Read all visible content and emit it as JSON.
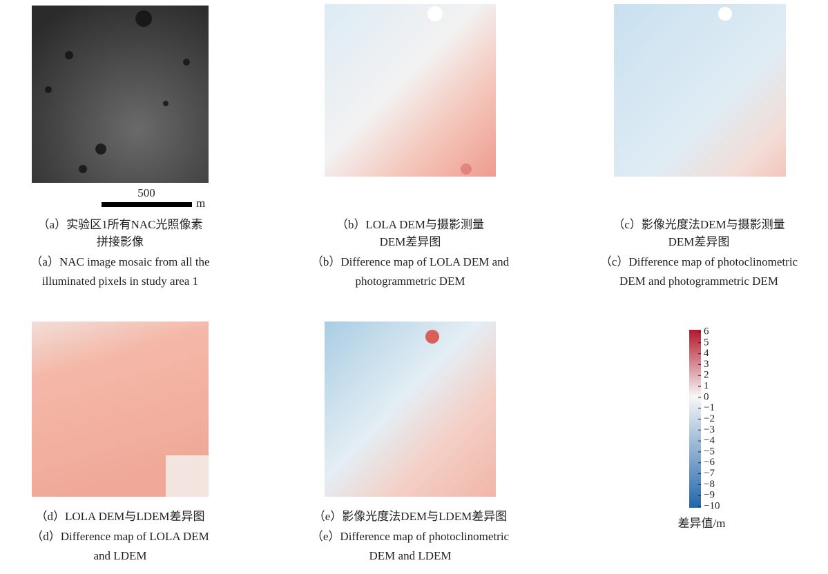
{
  "panels": [
    {
      "caption_cn": [
        "（a）实验区1所有NAC光照像素",
        "拼接影像"
      ],
      "caption_en": [
        "（a）NAC image mosaic from all the",
        "illuminated pixels in study area 1"
      ]
    },
    {
      "caption_cn": [
        "（b）LOLA DEM与摄影测量",
        "DEM差异图"
      ],
      "caption_en": [
        "（b）Difference map of LOLA DEM and",
        "photogrammetric DEM"
      ]
    },
    {
      "caption_cn": [
        "（c）影像光度法DEM与摄影测量",
        "DEM差异图"
      ],
      "caption_en": [
        "（c）Difference map of photoclinometric",
        "DEM and photogrammetric DEM"
      ]
    },
    {
      "caption_cn": [
        "（d）LOLA DEM与LDEM差异图"
      ],
      "caption_en": [
        "（d）Difference map of LOLA DEM",
        "and LDEM"
      ]
    },
    {
      "caption_cn": [
        "（e）影像光度法DEM与LDEM差异图"
      ],
      "caption_en": [
        "（e）Difference map of photoclinometric",
        "DEM and LDEM"
      ]
    }
  ],
  "scale_bar": {
    "length": 500,
    "unit": "m"
  },
  "colorbar": {
    "label": "差异值/m",
    "lim": [
      -10,
      6
    ],
    "ticks": [
      6,
      5,
      4,
      3,
      2,
      1,
      0,
      {
        "value": -1,
        "label": "−1"
      },
      {
        "value": -2,
        "label": "−2"
      },
      {
        "value": -3,
        "label": "−3"
      },
      {
        "value": -4,
        "label": "−4"
      },
      {
        "value": -5,
        "label": "−5"
      },
      {
        "value": -6,
        "label": "−6"
      },
      {
        "value": -7,
        "label": "−7"
      },
      {
        "value": -8,
        "label": "−8"
      },
      {
        "value": -9,
        "label": "−9"
      },
      {
        "value": -10,
        "label": "−10"
      }
    ]
  }
}
